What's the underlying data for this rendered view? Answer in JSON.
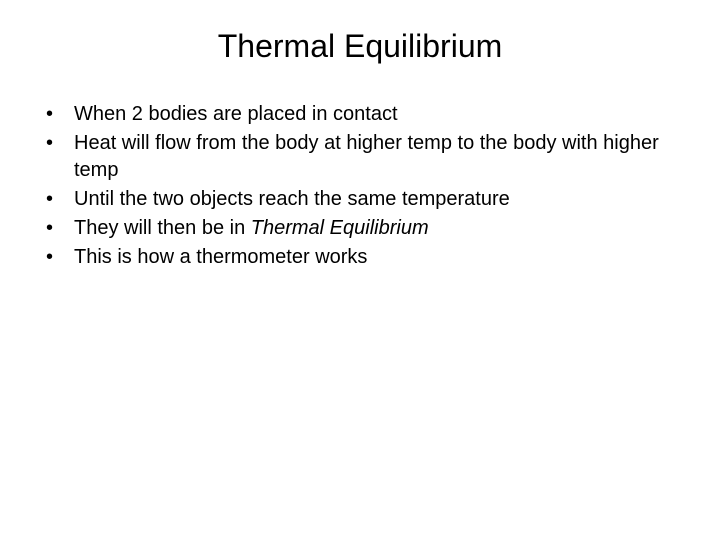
{
  "slide": {
    "title": "Thermal Equilibrium",
    "bullets": [
      {
        "text": "When 2 bodies are placed in contact"
      },
      {
        "text": "Heat will flow from the body at higher temp to the body with higher temp"
      },
      {
        "text": "Until the two objects reach the same temperature"
      },
      {
        "prefix": "They will then be in ",
        "italic": "Thermal Equilibrium"
      },
      {
        "text": "This is how a thermometer works"
      }
    ]
  },
  "style": {
    "background_color": "#ffffff",
    "text_color": "#000000",
    "title_fontsize": 32,
    "body_fontsize": 20,
    "font_family": "Arial"
  }
}
